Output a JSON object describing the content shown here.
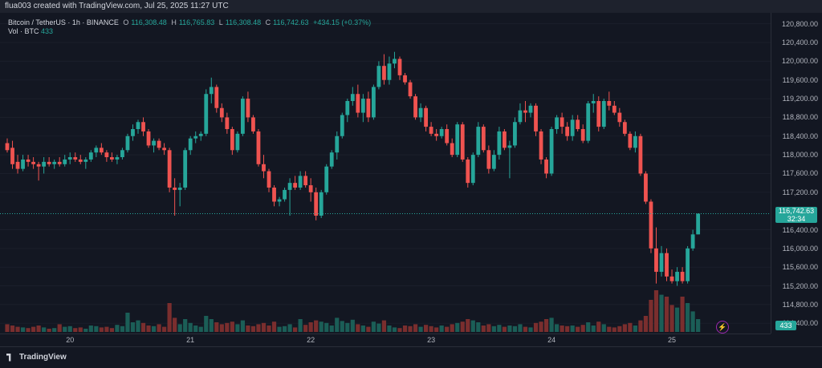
{
  "topbar": {
    "text": "flua003 created with TradingView.com, Jul 25, 2025 11:27 UTC"
  },
  "legend": {
    "symbol": "Bitcoin / TetherUS · 1h · BINANCE",
    "o_label": "O",
    "o_value": "116,308.48",
    "h_label": "H",
    "h_value": "116,765.83",
    "l_label": "L",
    "l_value": "116,308.48",
    "c_label": "C",
    "c_value": "116,742.63",
    "change": "+434.15 (+0.37%)",
    "vol_label": "Vol · BTC",
    "vol_value": "433"
  },
  "y_axis": {
    "ticks": [
      "120,800.00",
      "120,400.00",
      "120,000.00",
      "119,600.00",
      "119,200.00",
      "118,800.00",
      "118,400.00",
      "118,000.00",
      "117,600.00",
      "117,200.00",
      "116,400.00",
      "116,000.00",
      "115,600.00",
      "115,200.00",
      "114,800.00",
      "114,400.00"
    ],
    "price_label": "116,742.63",
    "countdown": "32:34",
    "volume_label": "433"
  },
  "x_axis": {
    "ticks": [
      "20",
      "21",
      "22",
      "23",
      "24",
      "25"
    ]
  },
  "footer": {
    "logo_text": "TradingView"
  },
  "colors": {
    "up": "#26a69a",
    "down": "#ef5350",
    "background": "#131722",
    "grid": "#2a2e39"
  },
  "chart_data": {
    "type": "candlestick",
    "title": "Bitcoin / TetherUS · 1h · BINANCE",
    "ylim": [
      114250,
      121000
    ],
    "x_day_labels": [
      "20",
      "21",
      "22",
      "23",
      "24",
      "25"
    ],
    "current_price": 116742.63,
    "candles": [
      {
        "o": 118250,
        "h": 118350,
        "l": 118050,
        "c": 118100,
        "v": 0.12
      },
      {
        "o": 118150,
        "h": 118300,
        "l": 117700,
        "c": 117800,
        "v": 0.1
      },
      {
        "o": 117850,
        "h": 118000,
        "l": 117600,
        "c": 117700,
        "v": 0.08
      },
      {
        "o": 117700,
        "h": 118000,
        "l": 117650,
        "c": 117900,
        "v": 0.07
      },
      {
        "o": 117900,
        "h": 118000,
        "l": 117750,
        "c": 117850,
        "v": 0.06
      },
      {
        "o": 117850,
        "h": 117950,
        "l": 117700,
        "c": 117800,
        "v": 0.08
      },
      {
        "o": 117800,
        "h": 117850,
        "l": 117450,
        "c": 117750,
        "v": 0.1
      },
      {
        "o": 117750,
        "h": 117950,
        "l": 117600,
        "c": 117850,
        "v": 0.07
      },
      {
        "o": 117850,
        "h": 117950,
        "l": 117750,
        "c": 117800,
        "v": 0.05
      },
      {
        "o": 117800,
        "h": 117900,
        "l": 117700,
        "c": 117850,
        "v": 0.06
      },
      {
        "o": 117850,
        "h": 117950,
        "l": 117750,
        "c": 117800,
        "v": 0.12
      },
      {
        "o": 117800,
        "h": 118000,
        "l": 117750,
        "c": 117900,
        "v": 0.08
      },
      {
        "o": 117900,
        "h": 118050,
        "l": 117800,
        "c": 117950,
        "v": 0.09
      },
      {
        "o": 117950,
        "h": 118050,
        "l": 117850,
        "c": 117900,
        "v": 0.06
      },
      {
        "o": 117900,
        "h": 118000,
        "l": 117800,
        "c": 117850,
        "v": 0.07
      },
      {
        "o": 117850,
        "h": 117950,
        "l": 117700,
        "c": 117900,
        "v": 0.05
      },
      {
        "o": 117900,
        "h": 118100,
        "l": 117850,
        "c": 118050,
        "v": 0.1
      },
      {
        "o": 118050,
        "h": 118200,
        "l": 117950,
        "c": 118150,
        "v": 0.09
      },
      {
        "o": 118150,
        "h": 118250,
        "l": 118000,
        "c": 118050,
        "v": 0.07
      },
      {
        "o": 118050,
        "h": 118100,
        "l": 117850,
        "c": 117950,
        "v": 0.08
      },
      {
        "o": 117950,
        "h": 118050,
        "l": 117850,
        "c": 117900,
        "v": 0.06
      },
      {
        "o": 117900,
        "h": 118000,
        "l": 117800,
        "c": 117950,
        "v": 0.11
      },
      {
        "o": 117950,
        "h": 118150,
        "l": 117900,
        "c": 118100,
        "v": 0.09
      },
      {
        "o": 118100,
        "h": 118450,
        "l": 118050,
        "c": 118400,
        "v": 0.3
      },
      {
        "o": 118400,
        "h": 118650,
        "l": 118300,
        "c": 118550,
        "v": 0.15
      },
      {
        "o": 118550,
        "h": 118750,
        "l": 118450,
        "c": 118700,
        "v": 0.18
      },
      {
        "o": 118700,
        "h": 118800,
        "l": 118400,
        "c": 118500,
        "v": 0.14
      },
      {
        "o": 118500,
        "h": 118550,
        "l": 118150,
        "c": 118200,
        "v": 0.1
      },
      {
        "o": 118200,
        "h": 118350,
        "l": 118050,
        "c": 118300,
        "v": 0.09
      },
      {
        "o": 118300,
        "h": 118350,
        "l": 118100,
        "c": 118150,
        "v": 0.12
      },
      {
        "o": 118150,
        "h": 118250,
        "l": 118000,
        "c": 118100,
        "v": 0.08
      },
      {
        "o": 118100,
        "h": 118150,
        "l": 117200,
        "c": 117300,
        "v": 0.45
      },
      {
        "o": 117300,
        "h": 117500,
        "l": 116700,
        "c": 117250,
        "v": 0.22
      },
      {
        "o": 117250,
        "h": 117400,
        "l": 116900,
        "c": 117300,
        "v": 0.12
      },
      {
        "o": 117300,
        "h": 118150,
        "l": 117250,
        "c": 118100,
        "v": 0.2
      },
      {
        "o": 118100,
        "h": 118400,
        "l": 118000,
        "c": 118350,
        "v": 0.14
      },
      {
        "o": 118350,
        "h": 118500,
        "l": 118250,
        "c": 118400,
        "v": 0.1
      },
      {
        "o": 118400,
        "h": 118500,
        "l": 118300,
        "c": 118450,
        "v": 0.08
      },
      {
        "o": 118450,
        "h": 119400,
        "l": 118400,
        "c": 119300,
        "v": 0.25
      },
      {
        "o": 119300,
        "h": 119650,
        "l": 119100,
        "c": 119450,
        "v": 0.2
      },
      {
        "o": 119450,
        "h": 119500,
        "l": 118900,
        "c": 119000,
        "v": 0.15
      },
      {
        "o": 119000,
        "h": 119100,
        "l": 118700,
        "c": 118800,
        "v": 0.12
      },
      {
        "o": 118800,
        "h": 118900,
        "l": 118450,
        "c": 118550,
        "v": 0.14
      },
      {
        "o": 118550,
        "h": 118600,
        "l": 118000,
        "c": 118100,
        "v": 0.16
      },
      {
        "o": 118100,
        "h": 118500,
        "l": 118050,
        "c": 118450,
        "v": 0.12
      },
      {
        "o": 118450,
        "h": 119250,
        "l": 118400,
        "c": 119200,
        "v": 0.18
      },
      {
        "o": 119200,
        "h": 119350,
        "l": 118700,
        "c": 118800,
        "v": 0.1
      },
      {
        "o": 118800,
        "h": 118850,
        "l": 118450,
        "c": 118500,
        "v": 0.09
      },
      {
        "o": 118500,
        "h": 118550,
        "l": 117750,
        "c": 117800,
        "v": 0.12
      },
      {
        "o": 117800,
        "h": 118000,
        "l": 117500,
        "c": 117650,
        "v": 0.14
      },
      {
        "o": 117650,
        "h": 117700,
        "l": 117200,
        "c": 117300,
        "v": 0.1
      },
      {
        "o": 117300,
        "h": 117350,
        "l": 116900,
        "c": 117000,
        "v": 0.16
      },
      {
        "o": 117000,
        "h": 117100,
        "l": 116900,
        "c": 117050,
        "v": 0.08
      },
      {
        "o": 117050,
        "h": 117300,
        "l": 117000,
        "c": 117250,
        "v": 0.09
      },
      {
        "o": 117250,
        "h": 117500,
        "l": 116700,
        "c": 117400,
        "v": 0.12
      },
      {
        "o": 117400,
        "h": 117550,
        "l": 117250,
        "c": 117300,
        "v": 0.07
      },
      {
        "o": 117300,
        "h": 117650,
        "l": 117250,
        "c": 117550,
        "v": 0.2
      },
      {
        "o": 117550,
        "h": 117650,
        "l": 117300,
        "c": 117350,
        "v": 0.11
      },
      {
        "o": 117350,
        "h": 117500,
        "l": 117000,
        "c": 117200,
        "v": 0.15
      },
      {
        "o": 117200,
        "h": 117300,
        "l": 116600,
        "c": 116700,
        "v": 0.18
      },
      {
        "o": 116700,
        "h": 117250,
        "l": 116650,
        "c": 117200,
        "v": 0.16
      },
      {
        "o": 117200,
        "h": 117800,
        "l": 117150,
        "c": 117750,
        "v": 0.14
      },
      {
        "o": 117750,
        "h": 118100,
        "l": 117700,
        "c": 118050,
        "v": 0.1
      },
      {
        "o": 118050,
        "h": 118500,
        "l": 117900,
        "c": 118400,
        "v": 0.22
      },
      {
        "o": 118400,
        "h": 118900,
        "l": 118350,
        "c": 118850,
        "v": 0.17
      },
      {
        "o": 118850,
        "h": 119200,
        "l": 118700,
        "c": 119150,
        "v": 0.14
      },
      {
        "o": 119150,
        "h": 119450,
        "l": 119050,
        "c": 119300,
        "v": 0.19
      },
      {
        "o": 119300,
        "h": 119500,
        "l": 118800,
        "c": 118900,
        "v": 0.12
      },
      {
        "o": 118900,
        "h": 119300,
        "l": 118700,
        "c": 119200,
        "v": 0.1
      },
      {
        "o": 119200,
        "h": 119350,
        "l": 118700,
        "c": 118800,
        "v": 0.08
      },
      {
        "o": 118800,
        "h": 119500,
        "l": 118750,
        "c": 119450,
        "v": 0.16
      },
      {
        "o": 119450,
        "h": 120000,
        "l": 119400,
        "c": 119900,
        "v": 0.13
      },
      {
        "o": 119900,
        "h": 120150,
        "l": 119500,
        "c": 119600,
        "v": 0.18
      },
      {
        "o": 119600,
        "h": 120100,
        "l": 119500,
        "c": 119950,
        "v": 0.1
      },
      {
        "o": 119950,
        "h": 120200,
        "l": 119850,
        "c": 120050,
        "v": 0.07
      },
      {
        "o": 120050,
        "h": 120100,
        "l": 119600,
        "c": 119700,
        "v": 0.06
      },
      {
        "o": 119700,
        "h": 119750,
        "l": 119500,
        "c": 119550,
        "v": 0.1
      },
      {
        "o": 119550,
        "h": 119600,
        "l": 119200,
        "c": 119250,
        "v": 0.09
      },
      {
        "o": 119250,
        "h": 119300,
        "l": 118750,
        "c": 118800,
        "v": 0.12
      },
      {
        "o": 118800,
        "h": 119100,
        "l": 118700,
        "c": 119000,
        "v": 0.08
      },
      {
        "o": 119000,
        "h": 119050,
        "l": 118500,
        "c": 118600,
        "v": 0.11
      },
      {
        "o": 118600,
        "h": 118700,
        "l": 118400,
        "c": 118450,
        "v": 0.09
      },
      {
        "o": 118450,
        "h": 118550,
        "l": 118300,
        "c": 118400,
        "v": 0.07
      },
      {
        "o": 118400,
        "h": 118600,
        "l": 118350,
        "c": 118550,
        "v": 0.1
      },
      {
        "o": 118550,
        "h": 118650,
        "l": 118200,
        "c": 118250,
        "v": 0.08
      },
      {
        "o": 118250,
        "h": 118350,
        "l": 117950,
        "c": 118000,
        "v": 0.12
      },
      {
        "o": 118000,
        "h": 118700,
        "l": 117950,
        "c": 118650,
        "v": 0.14
      },
      {
        "o": 118650,
        "h": 118700,
        "l": 117850,
        "c": 117900,
        "v": 0.16
      },
      {
        "o": 117900,
        "h": 117950,
        "l": 117300,
        "c": 117400,
        "v": 0.2
      },
      {
        "o": 117400,
        "h": 118050,
        "l": 117350,
        "c": 118000,
        "v": 0.18
      },
      {
        "o": 118000,
        "h": 118700,
        "l": 117950,
        "c": 118600,
        "v": 0.15
      },
      {
        "o": 118600,
        "h": 118650,
        "l": 118050,
        "c": 118100,
        "v": 0.1
      },
      {
        "o": 118100,
        "h": 118200,
        "l": 117600,
        "c": 117700,
        "v": 0.12
      },
      {
        "o": 117700,
        "h": 118100,
        "l": 117650,
        "c": 118000,
        "v": 0.09
      },
      {
        "o": 118000,
        "h": 118600,
        "l": 117900,
        "c": 118500,
        "v": 0.11
      },
      {
        "o": 118500,
        "h": 118550,
        "l": 118100,
        "c": 118150,
        "v": 0.08
      },
      {
        "o": 118150,
        "h": 118300,
        "l": 117500,
        "c": 118200,
        "v": 0.1
      },
      {
        "o": 118200,
        "h": 118800,
        "l": 118150,
        "c": 118700,
        "v": 0.09
      },
      {
        "o": 118700,
        "h": 119100,
        "l": 118650,
        "c": 118950,
        "v": 0.12
      },
      {
        "o": 118950,
        "h": 119150,
        "l": 118700,
        "c": 118900,
        "v": 0.08
      },
      {
        "o": 118900,
        "h": 119100,
        "l": 118800,
        "c": 119050,
        "v": 0.07
      },
      {
        "o": 119050,
        "h": 119100,
        "l": 118400,
        "c": 118500,
        "v": 0.14
      },
      {
        "o": 118500,
        "h": 118550,
        "l": 117800,
        "c": 117900,
        "v": 0.16
      },
      {
        "o": 117900,
        "h": 117950,
        "l": 117500,
        "c": 117600,
        "v": 0.2
      },
      {
        "o": 117600,
        "h": 118600,
        "l": 117550,
        "c": 118550,
        "v": 0.22
      },
      {
        "o": 118550,
        "h": 118850,
        "l": 118450,
        "c": 118800,
        "v": 0.12
      },
      {
        "o": 118800,
        "h": 118900,
        "l": 118450,
        "c": 118600,
        "v": 0.1
      },
      {
        "o": 118600,
        "h": 118700,
        "l": 118300,
        "c": 118400,
        "v": 0.09
      },
      {
        "o": 118400,
        "h": 118850,
        "l": 118300,
        "c": 118750,
        "v": 0.1
      },
      {
        "o": 118750,
        "h": 118850,
        "l": 118500,
        "c": 118550,
        "v": 0.08
      },
      {
        "o": 118550,
        "h": 118650,
        "l": 118250,
        "c": 118300,
        "v": 0.11
      },
      {
        "o": 118300,
        "h": 119150,
        "l": 118250,
        "c": 119100,
        "v": 0.15
      },
      {
        "o": 119100,
        "h": 119300,
        "l": 118900,
        "c": 119150,
        "v": 0.1
      },
      {
        "o": 119150,
        "h": 119250,
        "l": 118500,
        "c": 118600,
        "v": 0.16
      },
      {
        "o": 118600,
        "h": 119200,
        "l": 118550,
        "c": 119150,
        "v": 0.12
      },
      {
        "o": 119150,
        "h": 119350,
        "l": 118950,
        "c": 119050,
        "v": 0.08
      },
      {
        "o": 119050,
        "h": 119150,
        "l": 118850,
        "c": 118900,
        "v": 0.07
      },
      {
        "o": 118900,
        "h": 119000,
        "l": 118600,
        "c": 118700,
        "v": 0.09
      },
      {
        "o": 118700,
        "h": 118750,
        "l": 118400,
        "c": 118450,
        "v": 0.12
      },
      {
        "o": 118450,
        "h": 118500,
        "l": 118100,
        "c": 118150,
        "v": 0.14
      },
      {
        "o": 118150,
        "h": 118500,
        "l": 118050,
        "c": 118400,
        "v": 0.1
      },
      {
        "o": 118400,
        "h": 118450,
        "l": 117550,
        "c": 117600,
        "v": 0.18
      },
      {
        "o": 117600,
        "h": 117650,
        "l": 116950,
        "c": 117000,
        "v": 0.25
      },
      {
        "o": 117000,
        "h": 117050,
        "l": 115900,
        "c": 116000,
        "v": 0.5
      },
      {
        "o": 116000,
        "h": 116450,
        "l": 115250,
        "c": 115500,
        "v": 0.65
      },
      {
        "o": 115500,
        "h": 116050,
        "l": 115400,
        "c": 115900,
        "v": 0.58
      },
      {
        "o": 115900,
        "h": 116000,
        "l": 115300,
        "c": 115400,
        "v": 0.55
      },
      {
        "o": 115400,
        "h": 115550,
        "l": 115250,
        "c": 115300,
        "v": 0.42
      },
      {
        "o": 115300,
        "h": 115600,
        "l": 115200,
        "c": 115500,
        "v": 0.38
      },
      {
        "o": 115500,
        "h": 115600,
        "l": 115250,
        "c": 115300,
        "v": 0.55
      },
      {
        "o": 115300,
        "h": 116050,
        "l": 115250,
        "c": 116000,
        "v": 0.45
      },
      {
        "o": 116000,
        "h": 116400,
        "l": 115950,
        "c": 116300,
        "v": 0.32
      },
      {
        "o": 116300,
        "h": 116750,
        "l": 116300,
        "c": 116742,
        "v": 0.2
      }
    ]
  }
}
